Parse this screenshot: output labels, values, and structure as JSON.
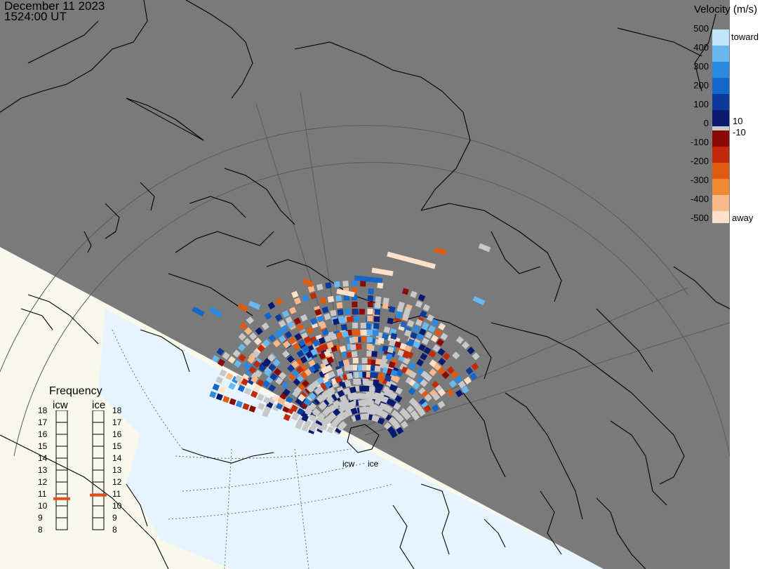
{
  "header": {
    "date": "December 11 2023",
    "time": "1524:00 UT"
  },
  "radars": {
    "icw_label": "icw",
    "ice_label": "ice"
  },
  "colorbar": {
    "title": "Velocity (m/s)",
    "ticks_top": [
      "500",
      "400",
      "300",
      "200",
      "100",
      "0"
    ],
    "ticks_bottom": [
      "-100",
      "-200",
      "-300",
      "-400",
      "-500"
    ],
    "small_pos": "10",
    "small_neg": "-10",
    "toward_label": "toward",
    "away_label": "away",
    "toward_colors": [
      "#0a1a6e",
      "#0b3a9a",
      "#1466c8",
      "#2a8ae0",
      "#6ab8f0",
      "#c0e4fa"
    ],
    "away_colors": [
      "#8a0a0a",
      "#c02a0a",
      "#e05a10",
      "#f08a30",
      "#f8b88a",
      "#fde0c8"
    ],
    "zero_color": "#c8c8c8"
  },
  "frequency": {
    "title": "Frequency",
    "left_label": "icw",
    "right_label": "ice",
    "ticks": [
      "18",
      "17",
      "16",
      "15",
      "14",
      "13",
      "12",
      "11",
      "10",
      "9",
      "8"
    ],
    "icw_mhz": 10.6,
    "ice_mhz": 10.9,
    "marker_color": "#e0501a"
  },
  "map_colors": {
    "night": "#7a7a7a",
    "land_day": "#f8f8ec",
    "ocean_day": "#e6f4fd",
    "ground_scatter": "#c8c8c8"
  }
}
